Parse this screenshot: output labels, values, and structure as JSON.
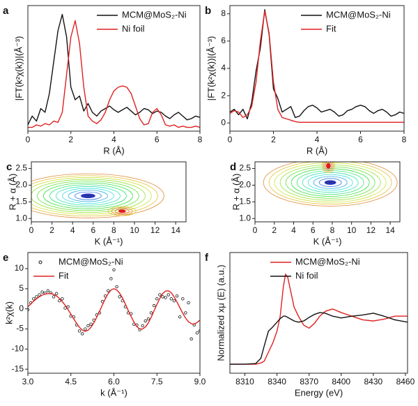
{
  "chart_data": [
    {
      "type": "line",
      "label": "a",
      "xlabel": "R (Å)",
      "ylabel": "|FT(k²χ(k))|(Å⁻³)",
      "xlim": [
        0,
        8
      ],
      "xticks": [
        0,
        2,
        4,
        6,
        8
      ],
      "ylim": [
        0,
        10
      ],
      "legend": "upper right",
      "x": [
        0,
        0.2,
        0.4,
        0.6,
        0.8,
        1,
        1.2,
        1.4,
        1.6,
        1.8,
        2,
        2.2,
        2.4,
        2.6,
        2.8,
        3,
        3.2,
        3.4,
        3.6,
        3.8,
        4,
        4.2,
        4.4,
        4.6,
        4.8,
        5,
        5.2,
        5.4,
        5.6,
        5.8,
        6,
        6.2,
        6.4,
        6.6,
        6.8,
        7,
        7.2,
        7.4,
        7.6,
        7.8,
        8
      ],
      "series": [
        {
          "name": "MCM@MoS₂-Ni",
          "color": "#111111",
          "values": [
            0.5,
            1.2,
            0.8,
            1.8,
            1.5,
            3.0,
            5.5,
            8.0,
            9.3,
            7.5,
            3.5,
            2.5,
            2.8,
            1.6,
            2.2,
            1.5,
            1.2,
            1.6,
            1.8,
            2.0,
            1.7,
            1.5,
            1.7,
            1.9,
            1.6,
            1.3,
            1.5,
            1.8,
            1.7,
            1.4,
            1.6,
            1.5,
            1.2,
            1.0,
            1.3,
            1.5,
            1.2,
            0.9,
            1.0,
            1.2,
            1.1
          ]
        },
        {
          "name": "Ni foil",
          "color": "#e02020",
          "values": [
            0.3,
            0.3,
            0.5,
            0.4,
            0.6,
            0.5,
            0.8,
            0.7,
            1.5,
            4.5,
            7.5,
            8.8,
            7.0,
            3.5,
            1.2,
            0.8,
            0.6,
            0.9,
            1.5,
            2.5,
            3.2,
            3.5,
            3.6,
            3.5,
            3.0,
            2.0,
            1.0,
            0.5,
            0.6,
            1.5,
            1.8,
            1.3,
            0.5,
            0.4,
            0.5,
            0.3,
            0.4,
            0.3,
            0.3,
            0.4,
            0.3
          ]
        }
      ]
    },
    {
      "type": "line",
      "label": "b",
      "xlabel": "R (Å)",
      "ylabel": "|FT(k²χ(k))|(Å⁻³)",
      "xlim": [
        0,
        8
      ],
      "xticks": [
        0,
        2,
        4,
        6,
        8
      ],
      "ylim": [
        -0.6,
        8.6
      ],
      "yticks": [
        0,
        2,
        4,
        6,
        8
      ],
      "legend": "upper right",
      "x": [
        0,
        0.2,
        0.4,
        0.6,
        0.8,
        1,
        1.2,
        1.4,
        1.6,
        1.8,
        2,
        2.2,
        2.4,
        2.6,
        2.8,
        3,
        3.2,
        3.4,
        3.6,
        3.8,
        4,
        4.2,
        4.4,
        4.6,
        4.8,
        5,
        5.2,
        5.4,
        5.6,
        5.8,
        6,
        6.2,
        6.4,
        6.6,
        6.8,
        7,
        7.2,
        7.4,
        7.6,
        7.8,
        8
      ],
      "series": [
        {
          "name": "MCM@MoS₂-Ni",
          "color": "#111111",
          "values": [
            0.8,
            1.0,
            0.6,
            1.0,
            0.3,
            1.5,
            3.8,
            5.5,
            8.3,
            6.5,
            2.5,
            1.8,
            0.8,
            1.0,
            1.2,
            0.4,
            0.5,
            0.9,
            1.2,
            1.3,
            1.1,
            0.8,
            0.9,
            1.0,
            0.8,
            0.5,
            0.6,
            0.9,
            1.0,
            1.2,
            1.3,
            1.2,
            0.9,
            0.7,
            0.9,
            1.0,
            0.8,
            0.5,
            0.6,
            0.8,
            0.7
          ]
        },
        {
          "name": "Fit",
          "color": "#e02020",
          "values": [
            0.7,
            0.9,
            0.8,
            0.4,
            0.6,
            1.2,
            3.0,
            6.0,
            8.2,
            6.6,
            3.0,
            1.0,
            0.4,
            0.3,
            0.2,
            0.1,
            0.05,
            0.05,
            0.05,
            0.05,
            0.05,
            0.05,
            0.05,
            0.05,
            0.05,
            0.05,
            0.05,
            0.05,
            0.05,
            0.05,
            0.05,
            0.05,
            0.05,
            0.05,
            0.05,
            0.05,
            0.05,
            0.05,
            0.05,
            0.05,
            0.05
          ]
        }
      ]
    },
    {
      "type": "contour",
      "label": "c",
      "xlabel": "K (Å⁻¹)",
      "ylabel": "R + α (Å)",
      "xlim": [
        0,
        15
      ],
      "xticks": [
        0,
        2,
        4,
        6,
        8,
        10,
        12,
        14
      ],
      "ylim": [
        0.9,
        2.7
      ],
      "yticks": [
        {
          "value": 1,
          "label": "1.0"
        },
        1.5,
        {
          "value": 2,
          "label": "2.0"
        },
        2.5
      ],
      "peaks": [
        {
          "x": 5.5,
          "y": 1.68
        },
        {
          "x": 8.8,
          "y": 1.22
        }
      ]
    },
    {
      "type": "contour",
      "label": "d",
      "xlabel": "K (Å⁻¹)",
      "ylabel": "R + α (Å)",
      "xlim": [
        0,
        15
      ],
      "xticks": [
        0,
        2,
        4,
        6,
        8,
        10,
        12,
        14
      ],
      "ylim": [
        0.9,
        2.7
      ],
      "yticks": [
        {
          "value": 1,
          "label": "1.0"
        },
        1.5,
        {
          "value": 2,
          "label": "2.0"
        },
        2.5
      ],
      "peaks": [
        {
          "x": 7.8,
          "y": 2.08
        },
        {
          "x": 7.6,
          "y": 2.58
        }
      ]
    },
    {
      "type": "line",
      "label": "e",
      "xlabel": "k (Å⁻¹)",
      "ylabel": "k²χ(k)",
      "xlim": [
        3,
        9
      ],
      "xticks": [
        {
          "value": 3,
          "label": "3.0"
        },
        4.5,
        {
          "value": 6,
          "label": "6.0"
        },
        7.5,
        {
          "value": 9,
          "label": "9.0"
        }
      ],
      "ylim": [
        -16,
        14
      ],
      "yticks": [
        -15,
        -10,
        -5,
        0,
        5,
        10
      ],
      "legend": "upper left",
      "x": [
        3,
        3.1,
        3.2,
        3.3,
        3.4,
        3.5,
        3.6,
        3.7,
        3.8,
        3.9,
        4,
        4.1,
        4.2,
        4.3,
        4.4,
        4.5,
        4.6,
        4.7,
        4.8,
        4.9,
        5,
        5.1,
        5.2,
        5.3,
        5.4,
        5.5,
        5.6,
        5.7,
        5.8,
        5.9,
        6,
        6.1,
        6.2,
        6.3,
        6.4,
        6.5,
        6.6,
        6.7,
        6.8,
        6.9,
        7,
        7.1,
        7.2,
        7.3,
        7.4,
        7.5,
        7.6,
        7.7,
        7.8,
        7.9,
        8,
        8.1,
        8.2,
        8.3,
        8.4,
        8.5,
        8.6,
        8.7,
        8.8,
        8.9,
        9
      ],
      "series": [
        {
          "name": "MCM@MoS₂-Ni",
          "color": "#111111",
          "kind": "scatter",
          "values": [
            -0.2,
            1.5,
            2.5,
            3.0,
            3.5,
            4.2,
            3.9,
            4.5,
            4.0,
            3.0,
            3.8,
            2.0,
            2.5,
            0.2,
            0.5,
            -1.8,
            -2.0,
            -4.0,
            -5.5,
            -6.2,
            -5.0,
            -4.2,
            -3.8,
            -2.8,
            -1.5,
            -1.0,
            1.8,
            3.2,
            4.5,
            7.5,
            9.7,
            5.5,
            3.0,
            2.0,
            0.5,
            -1.0,
            -1.2,
            -3.8,
            -4.0,
            -5.2,
            -4.2,
            -3.0,
            -2.5,
            -1.0,
            0.8,
            2.5,
            3.5,
            3.0,
            2.8,
            3.5,
            2.5,
            2.0,
            3.2,
            -2.0,
            2.5,
            -1.0,
            1.5,
            -7.5,
            -4.0,
            -6.0,
            -5.5
          ]
        },
        {
          "name": "Fit",
          "color": "#e02020",
          "kind": "line",
          "values": [
            0.5,
            1.2,
            1.9,
            2.5,
            3.0,
            3.4,
            3.7,
            3.8,
            3.8,
            3.6,
            3.2,
            2.6,
            1.8,
            0.9,
            -0.2,
            -1.3,
            -2.5,
            -3.6,
            -4.6,
            -5.3,
            -5.6,
            -5.3,
            -4.6,
            -3.5,
            -2.1,
            -0.6,
            1.0,
            2.5,
            3.8,
            4.7,
            5.0,
            4.7,
            3.9,
            2.7,
            1.2,
            -0.4,
            -1.9,
            -3.3,
            -4.4,
            -5.0,
            -5.0,
            -4.5,
            -3.5,
            -2.1,
            -0.5,
            1.1,
            2.6,
            3.8,
            4.4,
            4.5,
            4.0,
            3.0,
            1.7,
            0.3,
            -1.1,
            -2.3,
            -3.2,
            -3.7,
            -3.8,
            -3.4,
            -2.8
          ]
        }
      ]
    },
    {
      "type": "line",
      "label": "f",
      "xlabel": "Energy (eV)",
      "ylabel": "Normalized xμ (E) (a.u.)",
      "xlim": [
        8296,
        8462
      ],
      "xticks": [
        8310,
        8340,
        8370,
        8400,
        8430,
        8460
      ],
      "ylim": [
        -0.15,
        1.86
      ],
      "legend": "upper center",
      "x": [
        8296,
        8310,
        8320,
        8325,
        8328,
        8332,
        8336,
        8340,
        8343,
        8346,
        8348,
        8350,
        8353,
        8356,
        8360,
        8365,
        8370,
        8375,
        8380,
        8385,
        8392,
        8400,
        8410,
        8420,
        8430,
        8440,
        8450,
        8462
      ],
      "series": [
        {
          "name": "MCM@MoS₂-Ni",
          "color": "#e02020",
          "values": [
            0,
            0,
            0,
            0.02,
            0.05,
            0.2,
            0.35,
            0.55,
            0.8,
            1.3,
            1.5,
            1.45,
            1.2,
            0.95,
            0.8,
            0.65,
            0.6,
            0.68,
            0.8,
            0.88,
            0.92,
            0.86,
            0.8,
            0.74,
            0.72,
            0.75,
            0.8,
            0.8
          ]
        },
        {
          "name": "Ni foil",
          "color": "#111111",
          "values": [
            0,
            0,
            0.01,
            0.1,
            0.3,
            0.55,
            0.62,
            0.7,
            0.76,
            0.8,
            0.8,
            0.78,
            0.75,
            0.72,
            0.7,
            0.72,
            0.78,
            0.83,
            0.86,
            0.85,
            0.8,
            0.77,
            0.8,
            0.82,
            0.85,
            0.8,
            0.74,
            0.7
          ]
        }
      ]
    }
  ]
}
